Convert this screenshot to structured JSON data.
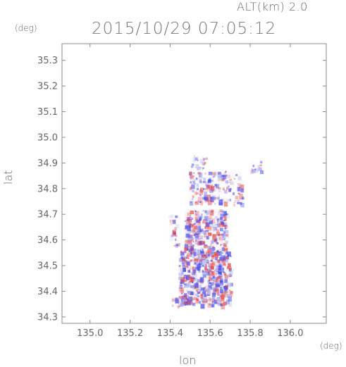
{
  "header": {
    "altitude_label": "ALT(km) 2.0",
    "datetime": "2015/10/29 07:05:12"
  },
  "chart_data": {
    "type": "heatmap",
    "title": "2015/10/29 07:05:12",
    "xlabel": "lon",
    "ylabel": "lat",
    "x_unit": "(deg)",
    "y_unit": "(deg)",
    "xlim": [
      134.86,
      136.18
    ],
    "ylim": [
      34.275,
      35.365
    ],
    "x_ticks": [
      135.0,
      135.2,
      135.4,
      135.6,
      135.8,
      136.0
    ],
    "x_tick_labels": [
      "135.0",
      "135.2",
      "135.4",
      "135.6",
      "135.8",
      "136.0"
    ],
    "y_ticks": [
      34.3,
      34.4,
      34.5,
      34.6,
      34.7,
      34.8,
      34.9,
      35.0,
      35.1,
      35.2,
      35.3
    ],
    "y_tick_labels": [
      "34.3",
      "34.4",
      "34.5",
      "34.6",
      "34.7",
      "34.8",
      "34.9",
      "35.0",
      "35.1",
      "35.2",
      "35.3"
    ],
    "grid": false,
    "colors": {
      "positive": "#e84a4a",
      "negative": "#4a4ae8",
      "axis": "#888888"
    },
    "regions": [
      {
        "lon": [
          135.44,
          135.7
        ],
        "lat": [
          34.35,
          34.56
        ],
        "intensity": 0.85
      },
      {
        "lon": [
          135.47,
          135.68
        ],
        "lat": [
          34.56,
          34.72
        ],
        "intensity": 0.75
      },
      {
        "lon": [
          135.49,
          135.76
        ],
        "lat": [
          34.74,
          34.87
        ],
        "intensity": 0.45
      },
      {
        "lon": [
          135.5,
          135.58
        ],
        "lat": [
          34.88,
          34.93
        ],
        "intensity": 0.35
      },
      {
        "lon": [
          135.8,
          135.86
        ],
        "lat": [
          34.87,
          34.91
        ],
        "intensity": 0.3
      },
      {
        "lon": [
          135.39,
          135.44
        ],
        "lat": [
          34.58,
          34.7
        ],
        "intensity": 0.25
      },
      {
        "lon": [
          135.4,
          135.48
        ],
        "lat": [
          34.34,
          34.38
        ],
        "intensity": 0.3
      }
    ]
  }
}
